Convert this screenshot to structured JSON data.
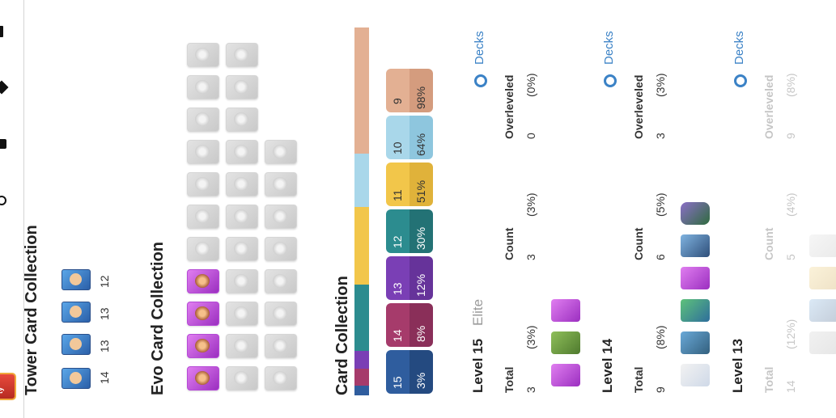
{
  "sidebar": {
    "badge": "ty"
  },
  "tower": {
    "title": "Tower Card Collection",
    "levels": [
      "14",
      "13",
      "13",
      "12"
    ]
  },
  "evo": {
    "title": "Evo Card Collection"
  },
  "card": {
    "title": "Card Collection",
    "levels": [
      {
        "level": "15",
        "pct": "3%",
        "top": "#2f5d9e",
        "bottom": "#244a80"
      },
      {
        "level": "14",
        "pct": "8%",
        "top": "#a63b6b",
        "bottom": "#8a2f59"
      },
      {
        "level": "13",
        "pct": "12%",
        "top": "#7a3fb5",
        "bottom": "#66339a"
      },
      {
        "level": "12",
        "pct": "30%",
        "top": "#2c8c8f",
        "bottom": "#237275"
      },
      {
        "level": "11",
        "pct": "51%",
        "top": "#f2c64a",
        "bottom": "#e0b23a"
      },
      {
        "level": "10",
        "pct": "64%",
        "top": "#a9d7ea",
        "bottom": "#8ec6de"
      },
      {
        "level": "9",
        "pct": "98%",
        "top": "#e3b093",
        "bottom": "#d49c7e"
      }
    ],
    "bar_colors": [
      "#2f5d9e",
      "#a63b6b",
      "#7a3fb5",
      "#2c8c8f",
      "#f2c64a",
      "#a9d7ea",
      "#e3b093"
    ]
  },
  "groups": [
    {
      "title": "Level 15",
      "subtitle": "Elite",
      "total_label": "Total",
      "total": "3",
      "total_pct": "(3%)",
      "count_label": "Count",
      "count": "3",
      "count_pct": "(3%)",
      "over_label": "Overleveled",
      "over": "0",
      "over_pct": "(0%)",
      "decks": "Decks"
    },
    {
      "title": "Level 14",
      "total_label": "Total",
      "total": "9",
      "total_pct": "(8%)",
      "count_label": "Count",
      "count": "6",
      "count_pct": "(5%)",
      "over_label": "Overleveled",
      "over": "3",
      "over_pct": "(3%)",
      "decks": "Decks"
    },
    {
      "title": "Level 13",
      "total_label": "Total",
      "total": "14",
      "total_pct": "(12%)",
      "count_label": "Count",
      "count": "5",
      "count_pct": "(4%)",
      "over_label": "Overleveled",
      "over": "9",
      "over_pct": "(8%)",
      "decks": "Decks"
    }
  ]
}
